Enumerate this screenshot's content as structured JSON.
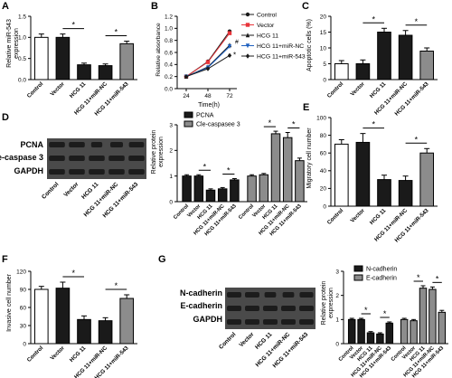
{
  "colors": {
    "white": "#ffffff",
    "black": "#1a1a1a",
    "gray": "#8c8c8c",
    "red": "#e8353b",
    "blue": "#1d5fbf",
    "blot_bg": "#4a4a4a",
    "band": "#1c1c1c"
  },
  "panels": {
    "A": {
      "letter": "A",
      "ylabel": "Relative miR-543\nexpression"
    },
    "B": {
      "letter": "B",
      "ylabel": "Relative absorbance",
      "xlabel": "Time(h)"
    },
    "C": {
      "letter": "C",
      "ylabel": "Apoptotic cells (%)"
    },
    "D": {
      "letter": "D",
      "blot_labels": [
        "PCNA",
        "Cle-caspase 3",
        "GAPDH"
      ],
      "ylabel": "Relative protein\nexpression"
    },
    "E": {
      "letter": "E",
      "ylabel": "Migratory cell number"
    },
    "F": {
      "letter": "F",
      "ylabel": "Invasive cell number"
    },
    "G": {
      "letter": "G",
      "blot_labels": [
        "N-cadherin",
        "E-cadherin",
        "GAPDH"
      ],
      "ylabel": "Relative protein\nexpression"
    }
  },
  "groups": [
    "Control",
    "Vector",
    "HCG 11",
    "HCG 11+miR-NC",
    "HCG 11+miR-543"
  ],
  "significance_mark": "*",
  "chart_data": [
    {
      "id": "A",
      "type": "bar",
      "categories": [
        "Control",
        "Vector",
        "HCG 11",
        "HCG 11+miR-NC",
        "HCG 11+miR-543"
      ],
      "values": [
        1.0,
        1.0,
        0.35,
        0.33,
        0.85
      ],
      "errors": [
        0.08,
        0.08,
        0.04,
        0.04,
        0.06
      ],
      "fills": [
        "white",
        "black",
        "black",
        "black",
        "gray"
      ],
      "ylim": [
        0,
        1.5
      ],
      "yticks": [
        0.0,
        0.5,
        1.0,
        1.5
      ],
      "ytick_labels": [
        "0.0",
        "0.5",
        "1.0",
        "1.5"
      ],
      "sig": [
        [
          1,
          2
        ],
        [
          3,
          4
        ]
      ]
    },
    {
      "id": "B",
      "type": "line",
      "x": [
        24,
        48,
        72
      ],
      "xticks": [
        "24",
        "48",
        "72"
      ],
      "ylim": [
        0.0,
        1.2
      ],
      "yticks": [
        0.0,
        0.2,
        0.4,
        0.6,
        0.8,
        1.0,
        1.2
      ],
      "ytick_labels": [
        "0.0",
        "0.2",
        "0.4",
        "0.6",
        "0.8",
        "1.0",
        "1.2"
      ],
      "series": [
        {
          "name": "Control",
          "values": [
            0.2,
            0.45,
            0.95
          ],
          "color": "black",
          "marker": "circle"
        },
        {
          "name": "Vector",
          "values": [
            0.2,
            0.44,
            0.92
          ],
          "color": "red",
          "marker": "square"
        },
        {
          "name": "HCG 11",
          "values": [
            0.2,
            0.36,
            0.72
          ],
          "color": "black",
          "marker": "triangle"
        },
        {
          "name": "HCG 11+miR-NC",
          "values": [
            0.2,
            0.35,
            0.7
          ],
          "color": "blue",
          "marker": "triangle-down"
        },
        {
          "name": "HCG 11+miR-543",
          "values": [
            0.2,
            0.33,
            0.55
          ],
          "color": "black",
          "marker": "diamond"
        }
      ],
      "annotations": [
        "#",
        "*"
      ]
    },
    {
      "id": "C",
      "type": "bar",
      "categories": [
        "Control",
        "Vector",
        "HCG 11",
        "HCG 11+miR-NC",
        "HCG 11+miR-543"
      ],
      "values": [
        5,
        5,
        15,
        14,
        9
      ],
      "errors": [
        1,
        1.2,
        1.2,
        1.5,
        1
      ],
      "fills": [
        "white",
        "black",
        "black",
        "black",
        "gray"
      ],
      "ylim": [
        0,
        20
      ],
      "yticks": [
        0,
        5,
        10,
        15,
        20
      ],
      "ytick_labels": [
        "0",
        "5",
        "10",
        "15",
        "20"
      ],
      "sig": [
        [
          1,
          2
        ],
        [
          3,
          4
        ]
      ]
    },
    {
      "id": "D",
      "type": "bar",
      "categories": [
        "Control",
        "Vector",
        "HCG 11",
        "HCG 11+miR-NC",
        "HCG 11+miR-543"
      ],
      "series": [
        {
          "name": "PCNA",
          "values": [
            1.0,
            1.0,
            0.45,
            0.5,
            0.85
          ],
          "errors": [
            0.05,
            0.05,
            0.05,
            0.05,
            0.05
          ],
          "fill": "black"
        },
        {
          "name": "Cle-caspasee 3",
          "values": [
            1.0,
            1.05,
            2.65,
            2.5,
            1.6
          ],
          "errors": [
            0.05,
            0.05,
            0.1,
            0.2,
            0.1
          ],
          "fill": "gray"
        }
      ],
      "ylim": [
        0,
        3
      ],
      "yticks": [
        0,
        1,
        2,
        3
      ],
      "ytick_labels": [
        "0",
        "1",
        "2",
        "3"
      ],
      "sig": [
        [
          0,
          1,
          2
        ],
        [
          0,
          3,
          4
        ],
        [
          1,
          1,
          2
        ],
        [
          1,
          3,
          4
        ]
      ]
    },
    {
      "id": "E",
      "type": "bar",
      "categories": [
        "Control",
        "Vector",
        "HCG 11",
        "HCG 11+miR-NC",
        "HCG 11+miR-543"
      ],
      "values": [
        70,
        72,
        30,
        29,
        60
      ],
      "errors": [
        5,
        10,
        5,
        5,
        5
      ],
      "fills": [
        "white",
        "black",
        "black",
        "black",
        "gray"
      ],
      "ylim": [
        0,
        100
      ],
      "yticks": [
        0,
        20,
        40,
        60,
        80,
        100
      ],
      "ytick_labels": [
        "0",
        "20",
        "40",
        "60",
        "80",
        "100"
      ],
      "sig": [
        [
          1,
          2
        ],
        [
          3,
          4
        ]
      ]
    },
    {
      "id": "F",
      "type": "bar",
      "categories": [
        "Control",
        "Vector",
        "HCG 11",
        "HCG 11+miR-NC",
        "HCG 11+miR-543"
      ],
      "values": [
        90,
        92,
        40,
        38,
        75
      ],
      "errors": [
        5,
        10,
        6,
        5,
        6
      ],
      "fills": [
        "white",
        "black",
        "black",
        "black",
        "gray"
      ],
      "ylim": [
        0,
        120
      ],
      "yticks": [
        0,
        30,
        60,
        90,
        120
      ],
      "ytick_labels": [
        "0",
        "30",
        "60",
        "90",
        "120"
      ],
      "sig": [
        [
          1,
          2
        ],
        [
          3,
          4
        ]
      ]
    },
    {
      "id": "G",
      "type": "bar",
      "categories": [
        "Control",
        "Vector",
        "HCG 11",
        "HCG 11+miR-NC",
        "HCG 11+miR-543"
      ],
      "series": [
        {
          "name": "N-cadherin",
          "values": [
            1.0,
            1.0,
            0.45,
            0.4,
            0.85
          ],
          "errors": [
            0.05,
            0.05,
            0.05,
            0.05,
            0.05
          ],
          "fill": "black"
        },
        {
          "name": "E-cadherin",
          "values": [
            1.0,
            0.95,
            2.3,
            2.25,
            1.3
          ],
          "errors": [
            0.05,
            0.05,
            0.1,
            0.1,
            0.08
          ],
          "fill": "gray"
        }
      ],
      "ylim": [
        0,
        3
      ],
      "yticks": [
        0,
        1,
        2,
        3
      ],
      "ytick_labels": [
        "0",
        "1",
        "2",
        "3"
      ],
      "sig": [
        [
          0,
          1,
          2
        ],
        [
          0,
          3,
          4
        ],
        [
          1,
          1,
          2
        ],
        [
          1,
          3,
          4
        ]
      ]
    }
  ]
}
